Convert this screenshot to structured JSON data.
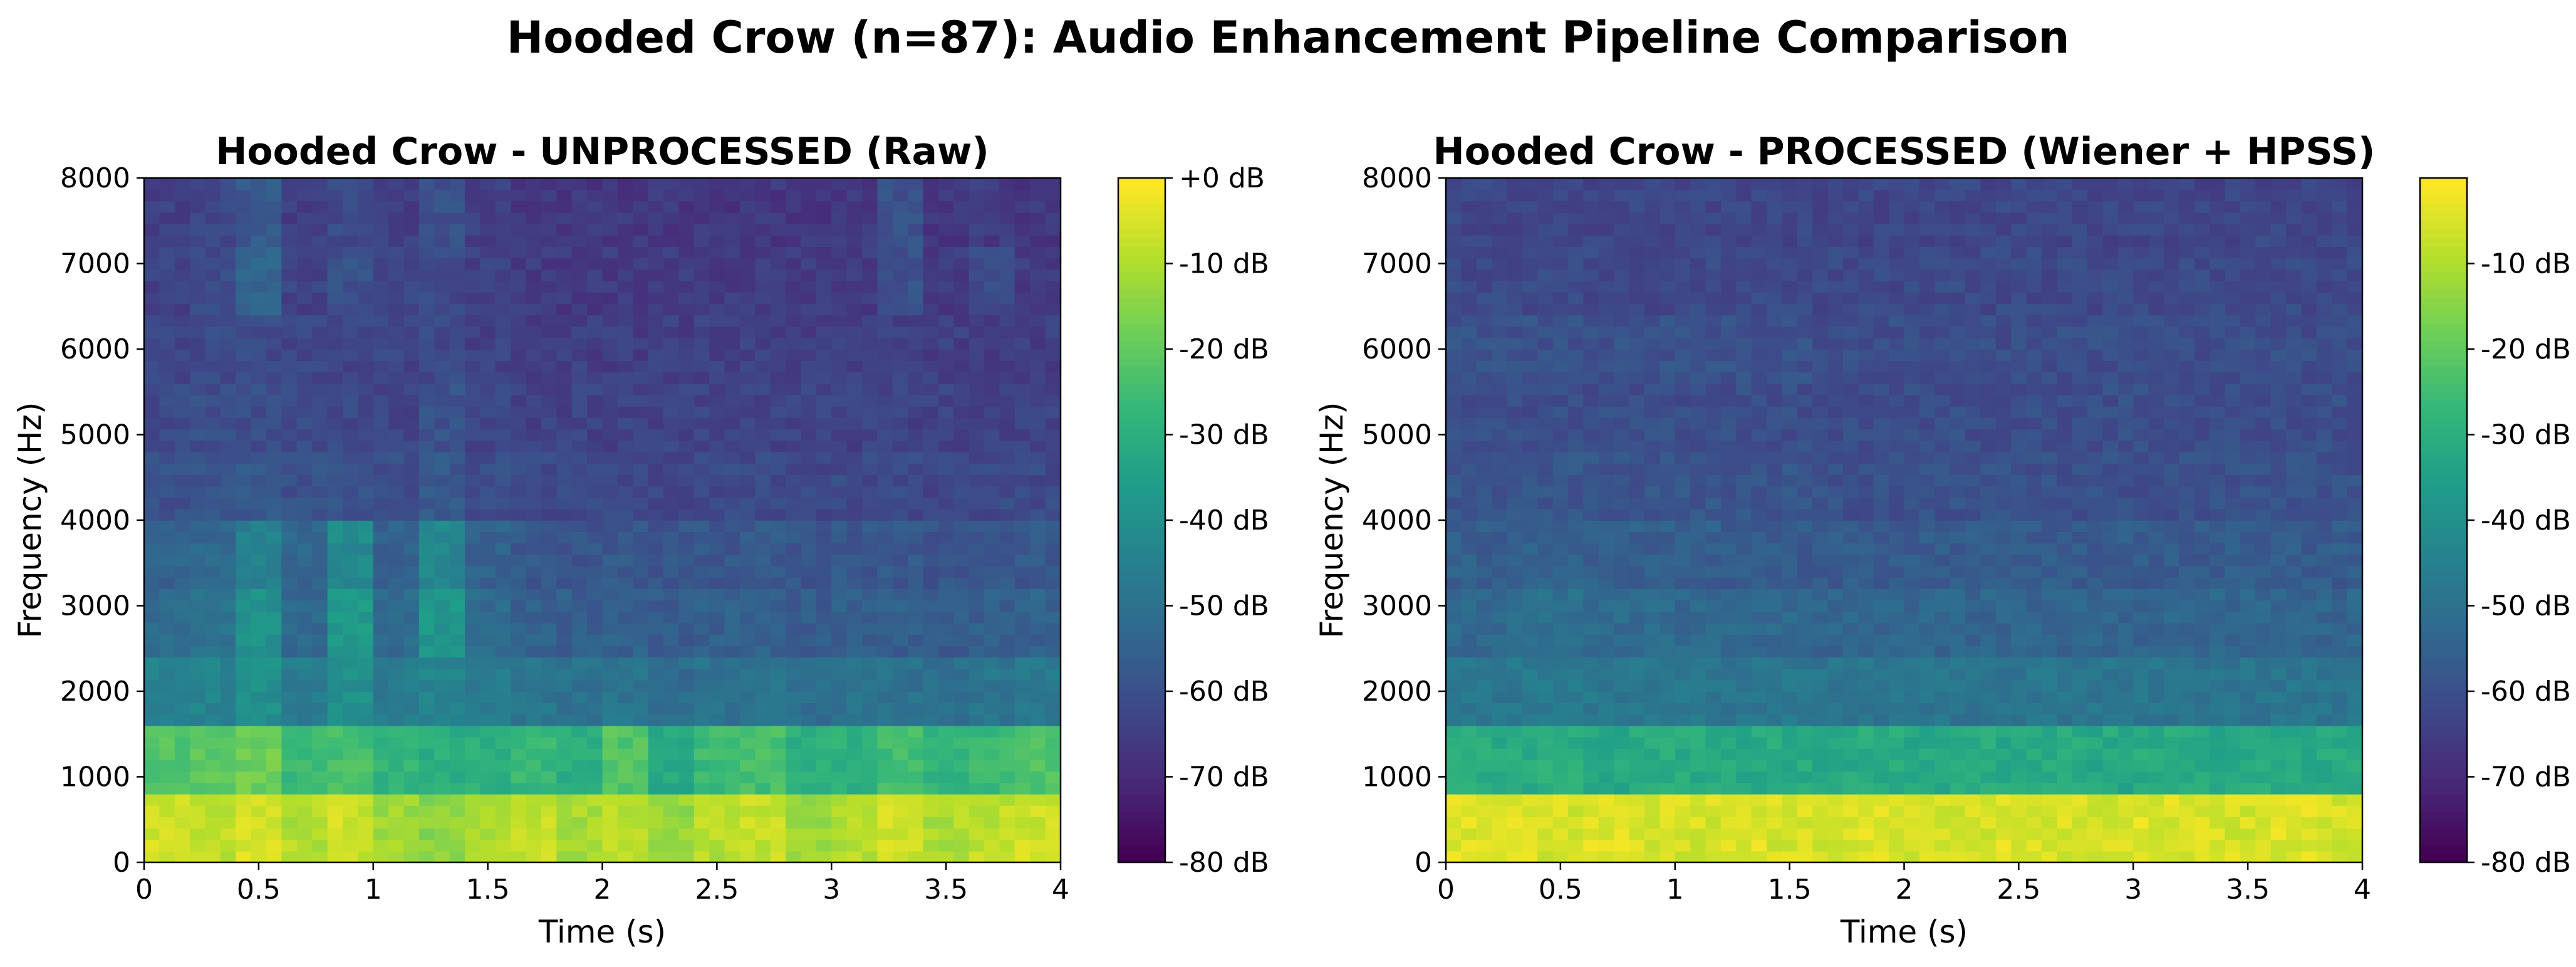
{
  "suptitle": "Hooded Crow (n=87): Audio Enhancement Pipeline Comparison",
  "colormap": [
    "#440154",
    "#482878",
    "#3e4989",
    "#31688e",
    "#26828e",
    "#1f9e89",
    "#35b779",
    "#6ece58",
    "#b5de2b",
    "#fde725"
  ],
  "chart_data": [
    {
      "type": "heatmap",
      "title": "Hooded Crow - UNPROCESSED (Raw)",
      "xlabel": "Time (s)",
      "ylabel": "Frequency (Hz)",
      "xlim": [
        0,
        4
      ],
      "ylim": [
        0,
        8000
      ],
      "xticks": [
        "0",
        "0.5",
        "1",
        "1.5",
        "2",
        "2.5",
        "3",
        "3.5",
        "4"
      ],
      "yticks": [
        "0",
        "1000",
        "2000",
        "3000",
        "4000",
        "5000",
        "6000",
        "7000",
        "8000"
      ],
      "colorbar": {
        "vmin": -80,
        "vmax": 0,
        "ticks": [
          "+0 dB",
          "-10 dB",
          "-20 dB",
          "-30 dB",
          "-40 dB",
          "-50 dB",
          "-60 dB",
          "-70 dB",
          "-80 dB"
        ]
      },
      "intensity_db": {
        "note_rows_low_to_high_freq_cols_0_to_4s": true,
        "values": [
          [
            -6,
            -8,
            -5,
            -9,
            -6,
            -12,
            -14,
            -10,
            -7,
            -11,
            -8,
            -13,
            -9,
            -7,
            -12,
            -9,
            -6,
            -10,
            -8,
            -6
          ],
          [
            -22,
            -20,
            -18,
            -26,
            -24,
            -28,
            -30,
            -29,
            -27,
            -30,
            -22,
            -32,
            -26,
            -24,
            -30,
            -29,
            -25,
            -28,
            -26,
            -22
          ],
          [
            -45,
            -44,
            -40,
            -46,
            -40,
            -47,
            -44,
            -47,
            -48,
            -50,
            -49,
            -52,
            -50,
            -49,
            -51,
            -50,
            -50,
            -51,
            -49,
            -48
          ],
          [
            -52,
            -50,
            -40,
            -53,
            -37,
            -52,
            -38,
            -52,
            -55,
            -56,
            -55,
            -57,
            -56,
            -55,
            -57,
            -56,
            -56,
            -57,
            -56,
            -55
          ],
          [
            -55,
            -53,
            -45,
            -54,
            -42,
            -55,
            -43,
            -55,
            -58,
            -59,
            -58,
            -59,
            -58,
            -58,
            -59,
            -58,
            -58,
            -59,
            -58,
            -58
          ],
          [
            -60,
            -59,
            -58,
            -60,
            -59,
            -61,
            -58,
            -61,
            -62,
            -62,
            -62,
            -63,
            -62,
            -62,
            -63,
            -62,
            -62,
            -63,
            -62,
            -62
          ],
          [
            -62,
            -61,
            -61,
            -62,
            -62,
            -63,
            -60,
            -63,
            -64,
            -64,
            -64,
            -64,
            -64,
            -64,
            -64,
            -64,
            -64,
            -64,
            -64,
            -64
          ],
          [
            -63,
            -62,
            -62,
            -63,
            -63,
            -63,
            -62,
            -64,
            -65,
            -65,
            -65,
            -65,
            -65,
            -65,
            -65,
            -65,
            -64,
            -65,
            -65,
            -65
          ],
          [
            -64,
            -62,
            -54,
            -64,
            -60,
            -64,
            -62,
            -64,
            -66,
            -66,
            -66,
            -66,
            -66,
            -66,
            -66,
            -66,
            -60,
            -66,
            -62,
            -66
          ],
          [
            -65,
            -63,
            -58,
            -65,
            -62,
            -65,
            -60,
            -65,
            -67,
            -67,
            -67,
            -67,
            -67,
            -67,
            -67,
            -67,
            -60,
            -67,
            -66,
            -67
          ]
        ]
      }
    },
    {
      "type": "heatmap",
      "title": "Hooded Crow - PROCESSED (Wiener + HPSS)",
      "xlabel": "Time (s)",
      "ylabel": "Frequency (Hz)",
      "xlim": [
        0,
        4
      ],
      "ylim": [
        0,
        8000
      ],
      "xticks": [
        "0",
        "0.5",
        "1",
        "1.5",
        "2",
        "2.5",
        "3",
        "3.5",
        "4"
      ],
      "yticks": [
        "0",
        "1000",
        "2000",
        "3000",
        "4000",
        "5000",
        "6000",
        "7000",
        "8000"
      ],
      "colorbar": {
        "vmin": -80,
        "vmax": 0,
        "ticks": [
          "-10 dB",
          "-20 dB",
          "-30 dB",
          "-40 dB",
          "-50 dB",
          "-60 dB",
          "-70 dB",
          "-80 dB"
        ]
      },
      "intensity_db": {
        "values": [
          [
            -4,
            -4,
            -5,
            -4,
            -5,
            -5,
            -4,
            -5,
            -5,
            -4,
            -5,
            -5,
            -4,
            -5,
            -5,
            -4,
            -5,
            -5,
            -4,
            -5
          ],
          [
            -30,
            -31,
            -30,
            -32,
            -31,
            -31,
            -32,
            -31,
            -32,
            -31,
            -32,
            -31,
            -32,
            -31,
            -32,
            -31,
            -32,
            -31,
            -32,
            -31
          ],
          [
            -48,
            -48,
            -47,
            -48,
            -48,
            -48,
            -49,
            -48,
            -49,
            -49,
            -49,
            -49,
            -49,
            -49,
            -49,
            -49,
            -49,
            -49,
            -49,
            -49
          ],
          [
            -53,
            -52,
            -51,
            -52,
            -52,
            -53,
            -53,
            -53,
            -54,
            -54,
            -54,
            -54,
            -54,
            -54,
            -54,
            -54,
            -54,
            -54,
            -54,
            -54
          ],
          [
            -56,
            -56,
            -55,
            -56,
            -56,
            -56,
            -57,
            -57,
            -57,
            -57,
            -57,
            -57,
            -57,
            -57,
            -57,
            -57,
            -57,
            -57,
            -57,
            -57
          ],
          [
            -59,
            -59,
            -59,
            -59,
            -59,
            -59,
            -59,
            -59,
            -60,
            -60,
            -60,
            -60,
            -60,
            -60,
            -60,
            -60,
            -60,
            -60,
            -60,
            -60
          ],
          [
            -61,
            -61,
            -61,
            -61,
            -61,
            -61,
            -61,
            -61,
            -61,
            -61,
            -61,
            -61,
            -61,
            -61,
            -61,
            -61,
            -61,
            -61,
            -61,
            -61
          ],
          [
            -60,
            -60,
            -60,
            -60,
            -60,
            -60,
            -60,
            -60,
            -61,
            -61,
            -61,
            -61,
            -61,
            -61,
            -61,
            -61,
            -61,
            -61,
            -61,
            -61
          ],
          [
            -62,
            -62,
            -62,
            -62,
            -62,
            -62,
            -62,
            -62,
            -62,
            -62,
            -62,
            -62,
            -62,
            -62,
            -62,
            -62,
            -62,
            -62,
            -62,
            -62
          ],
          [
            -63,
            -63,
            -63,
            -63,
            -63,
            -63,
            -63,
            -63,
            -63,
            -63,
            -63,
            -63,
            -63,
            -63,
            -63,
            -63,
            -63,
            -63,
            -63,
            -63
          ]
        ]
      }
    }
  ]
}
